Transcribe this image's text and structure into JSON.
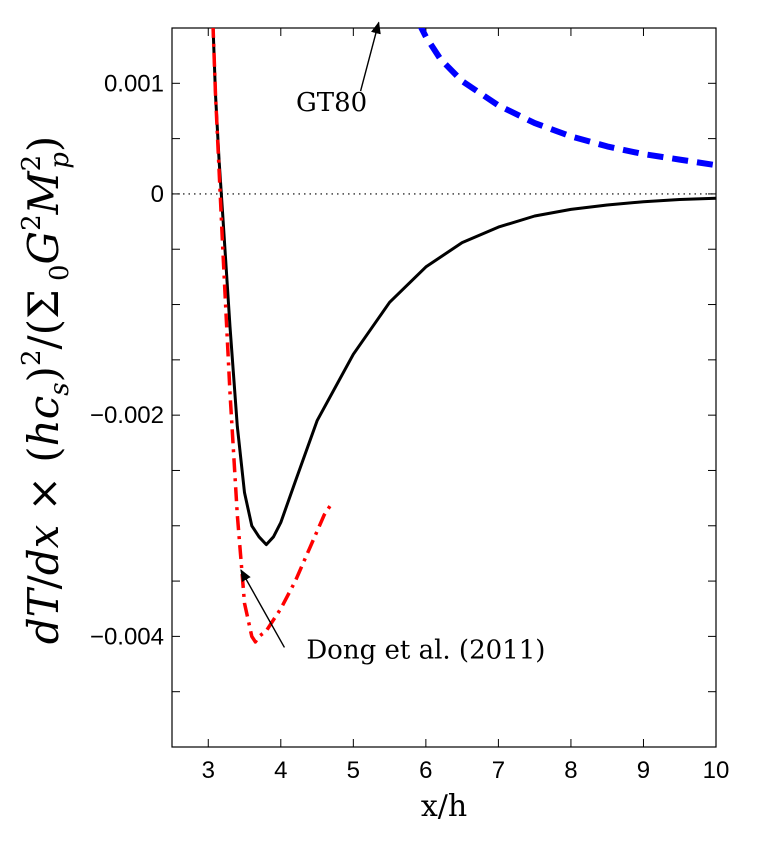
{
  "chart_data": {
    "type": "line",
    "xlabel": "x/h",
    "ylabel": "dT/dx × (hc_s)^2/(Σ_0 G^2 M_p^2)",
    "xlim": [
      2.5,
      10
    ],
    "ylim": [
      -0.005,
      0.0015
    ],
    "x_ticks": [
      3,
      4,
      5,
      6,
      7,
      8,
      9,
      10
    ],
    "y_ticks": [
      0.001,
      0,
      -0.002,
      -0.004
    ],
    "y_tick_labels": [
      "0.001",
      "0",
      "−0.002",
      "−0.004"
    ],
    "zero_line": {
      "style": "dotted",
      "color": "#000000"
    },
    "series": [
      {
        "style": "solid",
        "color": "#000000",
        "x": [
          3.05,
          3.1,
          3.15,
          3.2,
          3.3,
          3.4,
          3.5,
          3.6,
          3.7,
          3.8,
          3.9,
          4.0,
          4.2,
          4.5,
          5.0,
          5.5,
          6.0,
          6.5,
          7.0,
          7.5,
          8.0,
          8.5,
          9.0,
          9.5,
          10.0
        ],
        "y": [
          0.0018,
          0.0009,
          0.0003,
          -0.0002,
          -0.0012,
          -0.0021,
          -0.0027,
          -0.003,
          -0.0031,
          -0.00317,
          -0.0031,
          -0.00297,
          -0.0026,
          -0.00205,
          -0.00145,
          -0.00098,
          -0.00066,
          -0.00044,
          -0.0003,
          -0.0002,
          -0.00014,
          -0.0001,
          -7e-05,
          -5e-05,
          -4e-05
        ]
      },
      {
        "style": "dashed",
        "color": "#0000ff",
        "x": [
          5.9,
          6.0,
          6.2,
          6.5,
          7.0,
          7.5,
          8.0,
          8.5,
          9.0,
          9.5,
          10.0
        ],
        "y": [
          0.00155,
          0.00142,
          0.00122,
          0.00102,
          0.0008,
          0.00064,
          0.00052,
          0.00043,
          0.00036,
          0.00031,
          0.00026
        ]
      },
      {
        "style": "dashdot",
        "color": "#ff0000",
        "x": [
          3.05,
          3.1,
          3.2,
          3.3,
          3.4,
          3.5,
          3.6,
          3.65,
          3.7,
          3.8,
          3.9,
          4.0,
          4.2,
          4.4,
          4.6,
          4.7
        ],
        "y": [
          0.0018,
          0.0009,
          -0.0005,
          -0.0018,
          -0.0029,
          -0.0037,
          -0.004,
          -0.00405,
          -0.004,
          -0.00395,
          -0.00385,
          -0.00375,
          -0.0035,
          -0.0032,
          -0.0029,
          -0.0028
        ]
      }
    ],
    "annotations": [
      {
        "text": "GT80",
        "text_pos": [
          4.7,
          0.00075
        ],
        "arrow_tail": [
          5.1,
          0.00093
        ],
        "arrow_head": [
          5.35,
          0.00155
        ]
      },
      {
        "text": "Dong et al. (2011)",
        "text_pos": [
          6.0,
          -0.0042
        ],
        "arrow_tail": [
          4.05,
          -0.0041
        ],
        "arrow_head": [
          3.45,
          -0.0034
        ]
      }
    ]
  }
}
